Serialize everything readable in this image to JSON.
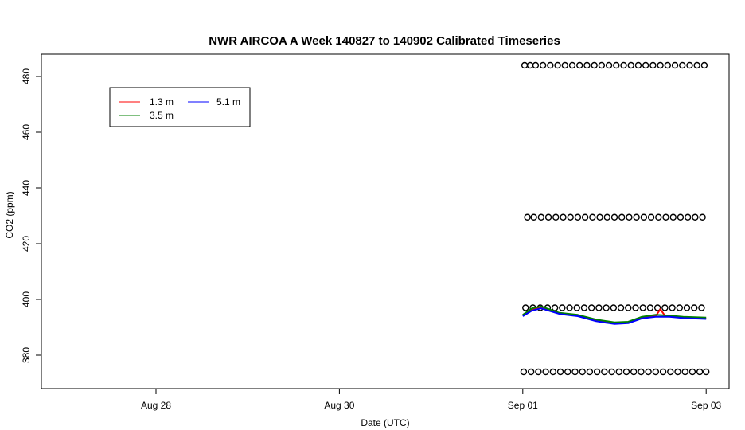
{
  "chart_data": {
    "type": "line",
    "title": "NWR AIRCOA A  Week 140827 to 140902  Calibrated Timeseries",
    "xlabel": "Date (UTC)",
    "ylabel": "CO2 (ppm)",
    "xlim": [
      26.75,
      33.25
    ],
    "ylim": [
      368,
      488
    ],
    "x_ticks": [
      {
        "value": 28,
        "label": "Aug 28"
      },
      {
        "value": 30,
        "label": "Aug 30"
      },
      {
        "value": 32,
        "label": "Sep 01"
      },
      {
        "value": 34,
        "label": "Sep 03"
      }
    ],
    "y_ticks": [
      380,
      400,
      420,
      440,
      460,
      480
    ],
    "grid": false,
    "legend_position": "top-left",
    "series": [
      {
        "name": "1.3 m",
        "color": "#ff0000",
        "x": [
          32.0,
          32.1,
          32.2,
          32.4,
          32.6,
          32.8,
          33.0,
          33.15,
          33.3,
          33.45,
          33.5,
          33.55,
          33.6,
          33.75,
          34.0
        ],
        "y": [
          394.5,
          396.5,
          397.2,
          395.0,
          394.2,
          392.5,
          391.5,
          391.8,
          393.5,
          394.0,
          396.5,
          394.2,
          394.0,
          393.5,
          393.2
        ]
      },
      {
        "name": "3.5 m",
        "color": "#008000",
        "x": [
          32.0,
          32.1,
          32.2,
          32.4,
          32.6,
          32.8,
          33.0,
          33.15,
          33.3,
          33.45,
          33.6,
          33.75,
          34.0
        ],
        "y": [
          394.5,
          396.8,
          397.5,
          395.2,
          394.5,
          392.8,
          391.8,
          392.0,
          393.8,
          394.5,
          394.2,
          393.8,
          393.5
        ]
      },
      {
        "name": "5.1 m",
        "color": "#0000ff",
        "x": [
          32.0,
          32.1,
          32.2,
          32.4,
          32.6,
          32.8,
          33.0,
          33.15,
          33.3,
          33.45,
          33.6,
          33.75,
          34.0
        ],
        "y": [
          394.0,
          396.0,
          396.8,
          394.8,
          394.0,
          392.2,
          391.2,
          391.5,
          393.2,
          393.8,
          393.8,
          393.3,
          393.0
        ]
      }
    ],
    "calibration_points": [
      {
        "y": 484,
        "x": [
          32.02,
          32.08,
          32.14,
          32.22,
          32.3,
          32.38,
          32.46,
          32.54,
          32.62,
          32.7,
          32.78,
          32.86,
          32.94,
          33.02,
          33.1,
          33.18,
          33.26,
          33.34,
          33.42,
          33.5,
          33.58,
          33.66,
          33.74,
          33.82,
          33.9,
          33.98
        ]
      },
      {
        "y": 429.5,
        "x": [
          32.05,
          32.12,
          32.2,
          32.28,
          32.36,
          32.44,
          32.52,
          32.6,
          32.68,
          32.76,
          32.84,
          32.92,
          33.0,
          33.08,
          33.16,
          33.24,
          33.32,
          33.4,
          33.48,
          33.56,
          33.64,
          33.72,
          33.8,
          33.88,
          33.96
        ]
      },
      {
        "y": 397,
        "x": [
          32.03,
          32.11,
          32.19,
          32.27,
          32.35,
          32.43,
          32.51,
          32.59,
          32.67,
          32.75,
          32.83,
          32.91,
          32.99,
          33.07,
          33.15,
          33.23,
          33.31,
          33.39,
          33.47,
          33.55,
          33.63,
          33.71,
          33.79,
          33.87,
          33.95
        ]
      },
      {
        "y": 374,
        "x": [
          32.01,
          32.09,
          32.17,
          32.25,
          32.33,
          32.41,
          32.49,
          32.57,
          32.65,
          32.73,
          32.81,
          32.89,
          32.97,
          33.05,
          33.13,
          33.21,
          33.29,
          33.37,
          33.45,
          33.53,
          33.61,
          33.69,
          33.77,
          33.85,
          33.93,
          34.0
        ]
      }
    ]
  }
}
